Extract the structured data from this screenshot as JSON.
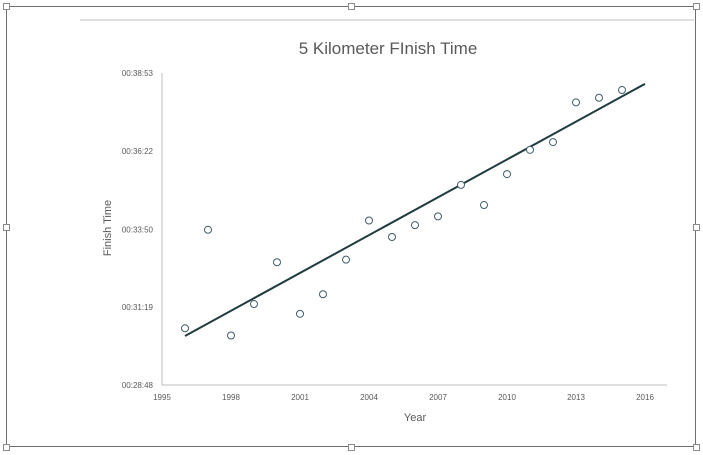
{
  "chart_data": {
    "type": "scatter",
    "title": "5 Kilometer FInish Time",
    "xlabel": "Year",
    "ylabel": "Finish Time",
    "xlim": [
      1995,
      2016
    ],
    "xticks": [
      1995,
      1998,
      2001,
      2004,
      2007,
      2010,
      2013,
      2016
    ],
    "ylim_seconds": [
      1728,
      2333
    ],
    "yticks": [
      "00:28:48",
      "00:31:19",
      "00:33:50",
      "00:36:22",
      "00:38:53"
    ],
    "series": [
      {
        "marker": "open-circle",
        "points": [
          {
            "x": 1996,
            "y": "00:30:38"
          },
          {
            "x": 1997,
            "y": "00:33:49"
          },
          {
            "x": 1998,
            "y": "00:30:24"
          },
          {
            "x": 1999,
            "y": "00:31:25"
          },
          {
            "x": 2000,
            "y": "00:32:46"
          },
          {
            "x": 2001,
            "y": "00:31:06"
          },
          {
            "x": 2002,
            "y": "00:31:44"
          },
          {
            "x": 2003,
            "y": "00:32:51"
          },
          {
            "x": 2004,
            "y": "00:34:07"
          },
          {
            "x": 2005,
            "y": "00:33:35"
          },
          {
            "x": 2006,
            "y": "00:33:58"
          },
          {
            "x": 2007,
            "y": "00:34:15"
          },
          {
            "x": 2008,
            "y": "00:35:16"
          },
          {
            "x": 2009,
            "y": "00:34:37"
          },
          {
            "x": 2010,
            "y": "00:35:37"
          },
          {
            "x": 2011,
            "y": "00:36:24"
          },
          {
            "x": 2012,
            "y": "00:36:39"
          },
          {
            "x": 2013,
            "y": "00:37:56"
          },
          {
            "x": 2014,
            "y": "00:38:05"
          },
          {
            "x": 2015,
            "y": "00:38:20"
          }
        ]
      }
    ],
    "trendline": {
      "type": "linear",
      "from": {
        "x": 1996,
        "y": "00:30:23"
      },
      "to": {
        "x": 2016,
        "y": "00:38:32"
      }
    },
    "grid": false,
    "legend": "none"
  },
  "colors": {
    "marker_stroke": "#3f5d6b",
    "trendline": "#1f3c3f",
    "axis": "#bfbfbf",
    "text": "#595959"
  }
}
